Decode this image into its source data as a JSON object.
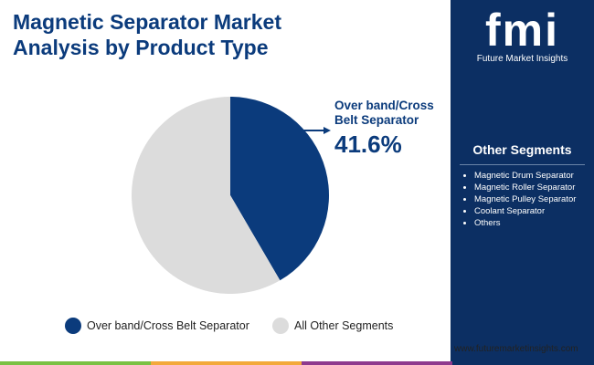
{
  "chart_data": {
    "type": "pie",
    "title": "Magnetic Separator Market Analysis by Product Type",
    "categories": [
      "Over band/Cross Belt Separator",
      "All Other Segments"
    ],
    "values": [
      41.6,
      58.4
    ],
    "value_labels": [
      "41.6%",
      null
    ],
    "colors": [
      "#0b3b7c",
      "#dcdcdc"
    ],
    "legend": "bottom"
  },
  "sidebar": {
    "logo": "fmi",
    "brand": "Future Market Insights",
    "heading": "Other Segments",
    "items": [
      "Magnetic Drum Separator",
      "Magnetic Roller Separator",
      "Magnetic Pulley Separator",
      "Coolant Separator",
      "Others"
    ],
    "url": "www.futuremarketinsights.com"
  }
}
